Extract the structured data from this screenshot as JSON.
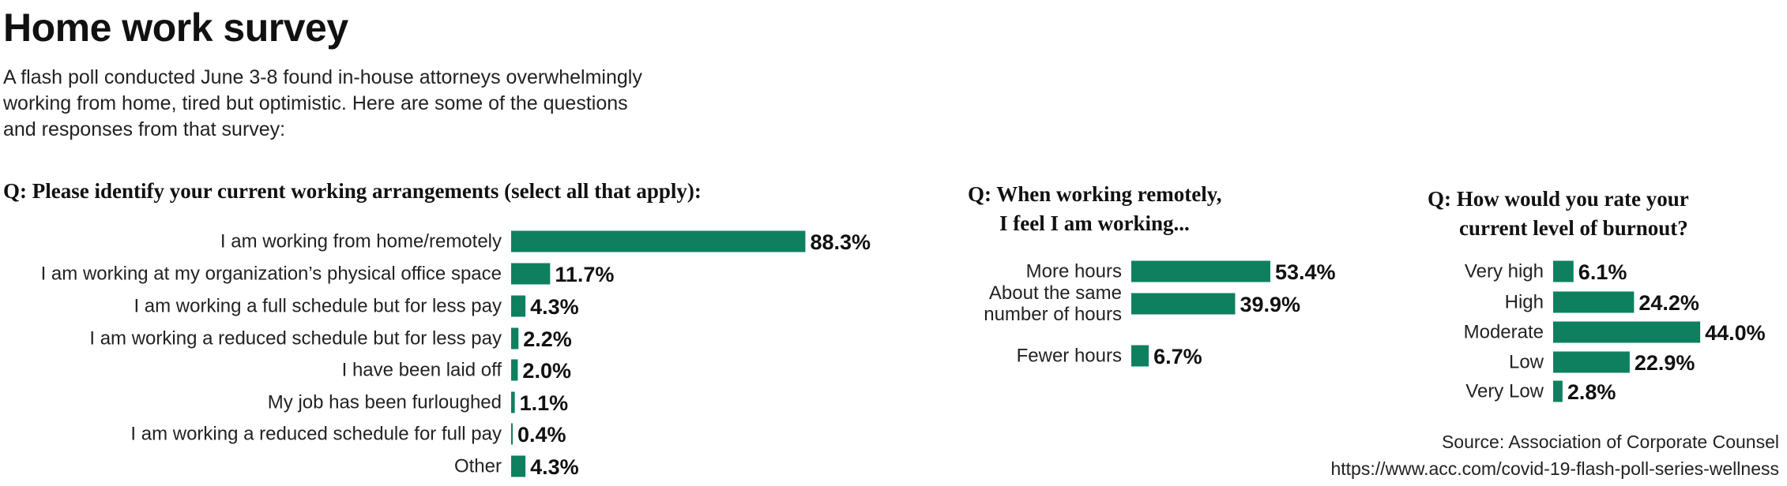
{
  "header": {
    "title": "Home work survey",
    "subtitle_lines": [
      "A flash poll conducted June 3-8 found in-house attorneys overwhelmingly",
      "working from home, tired but optimistic. Here are some of the questions",
      "and responses from that survey:"
    ]
  },
  "questions": {
    "q1": [
      "Q: Please identify your current working arrangements (select all that apply):"
    ],
    "q2": [
      "Q: When working remotely,",
      "I feel I am working..."
    ],
    "q3": [
      "Q: How would you rate your",
      "current level of burnout?"
    ]
  },
  "source": {
    "line1": "Source: Association of Corporate Counsel",
    "line2": "https://www.acc.com/covid-19-flash-poll-series-wellness"
  },
  "colors": {
    "bar": "#0e8060"
  },
  "chart_data": [
    {
      "type": "bar",
      "orientation": "horizontal",
      "title": "Q: Please identify your current working arrangements (select all that apply):",
      "categories": [
        [
          "I am working from home/remotely"
        ],
        [
          "I am working at my organization’s physical office space"
        ],
        [
          "I am working a full schedule but for less pay"
        ],
        [
          "I am working a reduced schedule but for less pay"
        ],
        [
          "I have been laid off"
        ],
        [
          "My job has been furloughed"
        ],
        [
          "I am working a reduced schedule for full pay"
        ],
        [
          "Other"
        ]
      ],
      "values": [
        88.3,
        11.7,
        4.3,
        2.2,
        2.0,
        1.1,
        0.4,
        4.3
      ],
      "value_labels": [
        "88.3%",
        "11.7%",
        "4.3%",
        "2.2%",
        "2.0%",
        "1.1%",
        "0.4%",
        "4.3%"
      ],
      "unit": "%"
    },
    {
      "type": "bar",
      "orientation": "horizontal",
      "title": "Q: When working remotely, I feel I am working...",
      "categories": [
        [
          "More hours"
        ],
        [
          "About the same",
          "number of hours"
        ],
        [
          "Fewer hours"
        ]
      ],
      "values": [
        53.4,
        39.9,
        6.7
      ],
      "value_labels": [
        "53.4%",
        "39.9%",
        "6.7%"
      ],
      "unit": "%"
    },
    {
      "type": "bar",
      "orientation": "horizontal",
      "title": "Q: How would you rate your current level of burnout?",
      "categories": [
        [
          "Very high"
        ],
        [
          "High"
        ],
        [
          "Moderate"
        ],
        [
          "Low"
        ],
        [
          "Very Low"
        ]
      ],
      "values": [
        6.1,
        24.2,
        44.0,
        22.9,
        2.8
      ],
      "value_labels": [
        "6.1%",
        "24.2%",
        "44.0%",
        "22.9%",
        "2.8%"
      ],
      "unit": "%"
    }
  ]
}
